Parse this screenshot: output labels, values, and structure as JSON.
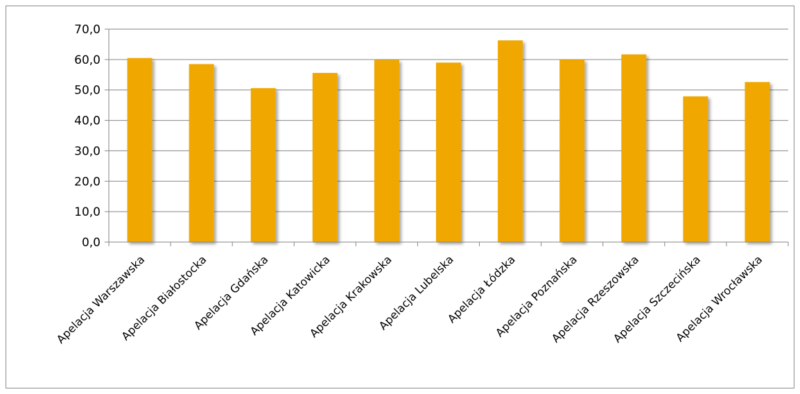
{
  "chart_data": {
    "type": "bar",
    "categories": [
      "Apelacja Warszawska",
      "Apelacja Białostocka",
      "Apelacja Gdańska",
      "Apelacja Katowicka",
      "Apelacja Krakowska",
      "Apelacja Lubelska",
      "Apelacja Łódzka",
      "Apelacja Poznańska",
      "Apelacja Rzeszowska",
      "Apelacja Szczecińska",
      "Apelacja Wrocławska"
    ],
    "values": [
      60.5,
      58.5,
      50.6,
      55.6,
      59.9,
      59.0,
      66.3,
      60.0,
      61.7,
      47.9,
      52.6
    ],
    "ylim": [
      0,
      70
    ],
    "yticks": [
      "0,0",
      "10,0",
      "20,0",
      "30,0",
      "40,0",
      "50,0",
      "60,0",
      "70,0"
    ],
    "grid": true,
    "title": "",
    "xlabel": "",
    "ylabel": "",
    "colors": {
      "bar": "#F0A800",
      "grid": "#868686",
      "frame": "#8c8c8c"
    }
  }
}
